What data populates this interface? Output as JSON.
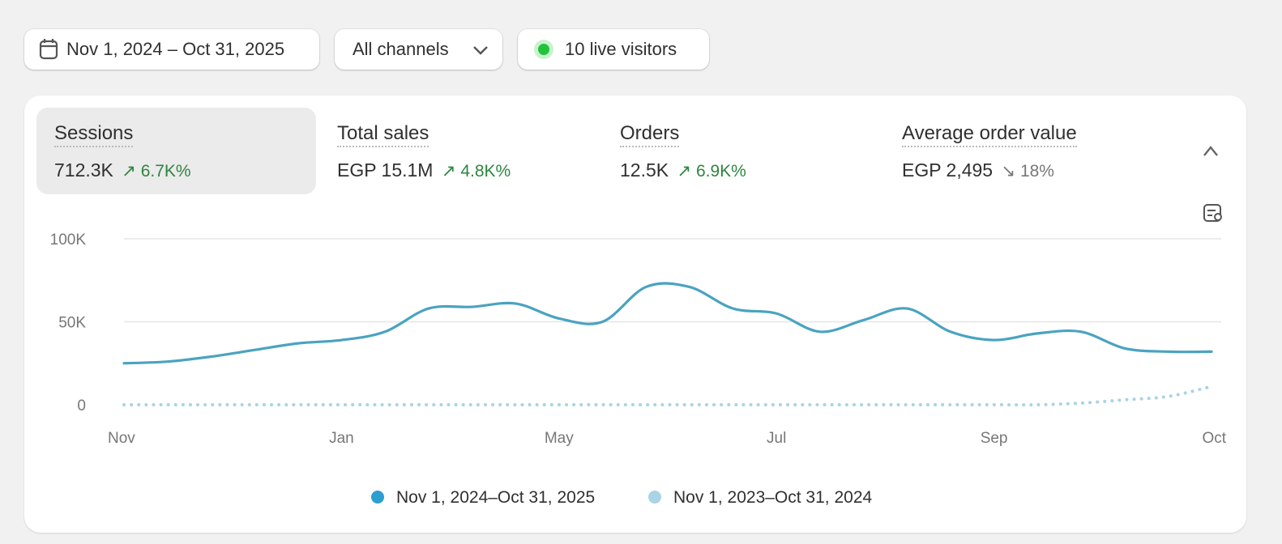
{
  "toolbar": {
    "date_range": "Nov 1, 2024 – Oct 31, 2025",
    "channels": "All channels",
    "live_visitors": "10 live visitors"
  },
  "metrics": [
    {
      "label": "Sessions",
      "value": "712.3K",
      "change": "6.7K%"
    },
    {
      "label": "Total sales",
      "value": "EGP 15.1M",
      "change": "4.8K%"
    },
    {
      "label": "Orders",
      "value": "12.5K",
      "change": "6.9K%"
    },
    {
      "label": "Average order value",
      "value": "EGP 2,495",
      "change": "18%"
    }
  ],
  "chart_data": {
    "type": "line",
    "categories": [
      "Nov",
      null,
      null,
      null,
      null,
      "Jan",
      null,
      null,
      null,
      null,
      "May",
      null,
      null,
      null,
      null,
      "Jul",
      null,
      null,
      null,
      null,
      "Sep",
      null,
      null,
      null,
      null,
      "Oct"
    ],
    "series": [
      {
        "name": "Nov 1, 2024–Oct 31, 2025",
        "color": "#4aa3c0",
        "values": [
          25000,
          26000,
          29000,
          33000,
          37000,
          39000,
          44000,
          58000,
          59000,
          61000,
          52000,
          50000,
          71000,
          71000,
          58000,
          55000,
          44000,
          51000,
          58000,
          44000,
          39000,
          43000,
          44000,
          34000,
          32000,
          32000
        ]
      },
      {
        "name": "Nov 1, 2023–Oct 31, 2024",
        "color": "#a8d4e6",
        "values": [
          0,
          0,
          0,
          0,
          0,
          0,
          0,
          0,
          0,
          0,
          0,
          0,
          0,
          0,
          0,
          0,
          0,
          0,
          0,
          0,
          0,
          0,
          1000,
          3000,
          5000,
          11000
        ]
      }
    ],
    "ylim": [
      0,
      100000
    ],
    "yticks": [
      {
        "value": 0,
        "label": "0"
      },
      {
        "value": 50000,
        "label": "50K"
      },
      {
        "value": 100000,
        "label": "100K"
      }
    ],
    "grid": true
  }
}
